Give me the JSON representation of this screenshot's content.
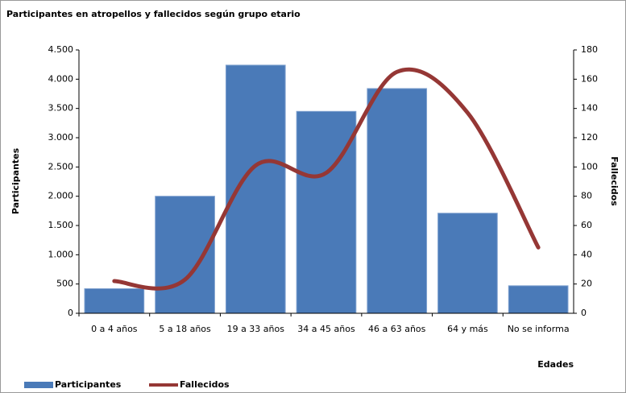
{
  "chart_data": {
    "type": "bar",
    "title": "Participantes en atropellos y fallecidos según grupo etario",
    "categories": [
      "0 a 4 años",
      "5 a 18 años",
      "19 a 33 años",
      "34 a 45 años",
      "46 a 63 años",
      "64 y más",
      "No se informa"
    ],
    "series": [
      {
        "name": "Participantes",
        "type": "bar",
        "color": "#4a7ab8",
        "values": [
          420,
          2000,
          4240,
          3450,
          3840,
          1710,
          470
        ]
      },
      {
        "name": "Fallecidos",
        "type": "line",
        "axis": "y2",
        "color": "#953735",
        "values": [
          22,
          23,
          101,
          96,
          165,
          137,
          45
        ]
      }
    ],
    "ylabel": "Participantes",
    "y2label": "Fallecidos",
    "xlabel": "Edades",
    "ylim": [
      0,
      4500
    ],
    "yticks": [
      0,
      500,
      {
        "value": 1000,
        "label": "1.000"
      },
      {
        "value": 1500,
        "label": "1.500"
      },
      {
        "value": 2000,
        "label": "2.000"
      },
      {
        "value": 2500,
        "label": "2.500"
      },
      {
        "value": 3000,
        "label": "3.000"
      },
      {
        "value": 3500,
        "label": "3.500"
      },
      {
        "value": 4000,
        "label": "4.000"
      },
      {
        "value": 4500,
        "label": "4.500"
      }
    ],
    "y2lim": [
      0,
      180
    ],
    "y2ticks": [
      0,
      20,
      40,
      60,
      80,
      100,
      120,
      140,
      160,
      180
    ],
    "legend": "bottom-left"
  }
}
